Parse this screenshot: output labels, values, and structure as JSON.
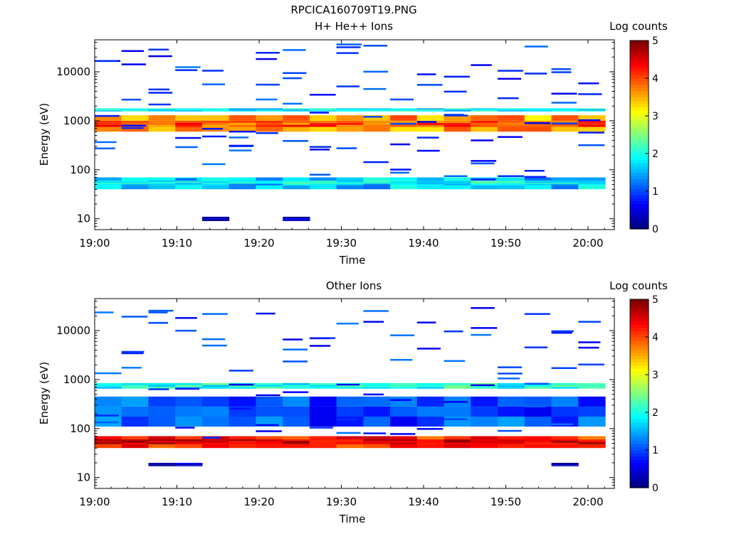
{
  "figure_title": "RPCICA160709T19.PNG",
  "chart_data": [
    {
      "type": "heatmap",
      "title": "H+ He++ Ions",
      "xlabel": "Time",
      "ylabel": "Energy (eV)",
      "x_ticks": [
        "19:00",
        "19:10",
        "19:20",
        "19:30",
        "19:40",
        "19:50",
        "20:00"
      ],
      "xlim_minutes": [
        0,
        63
      ],
      "y_scale": "log",
      "ylim": [
        6,
        45000
      ],
      "y_ticks": [
        10,
        100,
        1000,
        10000
      ],
      "y_tick_labels": [
        "10",
        "100",
        "1000",
        "10000"
      ],
      "colorbar": {
        "label": "Log counts",
        "range": [
          0,
          5
        ],
        "ticks": [
          "0",
          "1",
          "2",
          "3",
          "4",
          "5"
        ],
        "colormap": "jet"
      },
      "bands": [
        {
          "energy": [
            600,
            1300
          ],
          "value": 3.6
        },
        {
          "energy": [
            750,
            1000
          ],
          "value": 4.0
        },
        {
          "energy": [
            1550,
            1800
          ],
          "value": 1.8
        },
        {
          "energy": [
            40,
            70
          ],
          "value": 1.6
        },
        {
          "energy": [
            52,
            60
          ],
          "value": 1.9
        },
        {
          "energy": [
            9,
            11
          ],
          "value": 0.2
        }
      ]
    },
    {
      "type": "heatmap",
      "title": "Other Ions",
      "xlabel": "Time",
      "ylabel": "Energy (eV)",
      "x_ticks": [
        "19:00",
        "19:10",
        "19:20",
        "19:30",
        "19:40",
        "19:50",
        "20:00"
      ],
      "xlim_minutes": [
        0,
        63
      ],
      "y_scale": "log",
      "ylim": [
        6,
        45000
      ],
      "y_ticks": [
        10,
        100,
        1000,
        10000
      ],
      "y_tick_labels": [
        "10",
        "100",
        "1000",
        "10000"
      ],
      "colorbar": {
        "label": "Log counts",
        "range": [
          0,
          5
        ],
        "ticks": [
          "0",
          "1",
          "2",
          "3",
          "4",
          "5"
        ],
        "colormap": "jet"
      },
      "bands": [
        {
          "energy": [
            40,
            70
          ],
          "value": 4.2
        },
        {
          "energy": [
            48,
            60
          ],
          "value": 4.6
        },
        {
          "energy": [
            650,
            850
          ],
          "value": 2.0
        },
        {
          "energy": [
            110,
            450
          ],
          "value": 1.0
        },
        {
          "energy": [
            17,
            20
          ],
          "value": 0.2
        }
      ]
    }
  ]
}
